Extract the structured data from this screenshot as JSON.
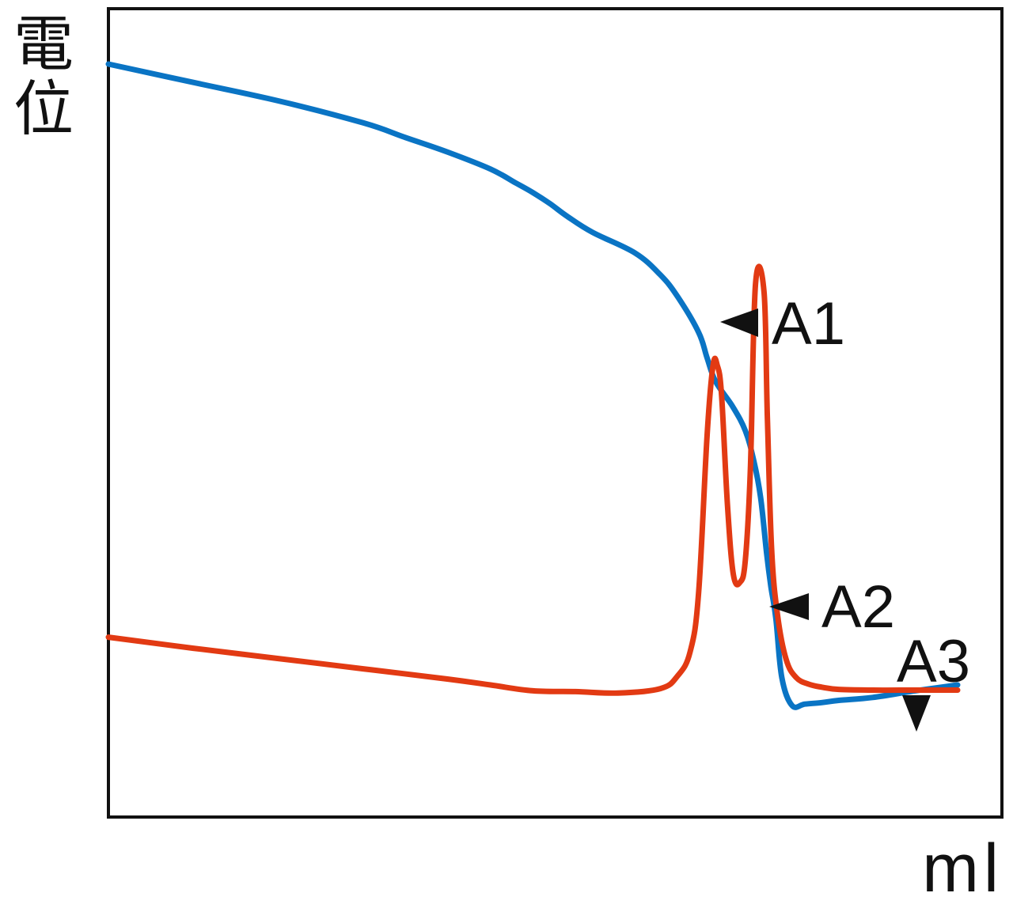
{
  "chart_data": {
    "type": "line",
    "ylabel": "電位",
    "xlabel": "ml",
    "xlim": [
      0,
      100
    ],
    "ylim": [
      0,
      100
    ],
    "grid": false,
    "ticks": false,
    "series": [
      {
        "color": "#0a74c4",
        "x": [
          0,
          10,
          20,
          30,
          35,
          40,
          45,
          48,
          50,
          52,
          54,
          57,
          62,
          65,
          67,
          69.5,
          70.5,
          71.5,
          73.5,
          75,
          76,
          76.8,
          77.5,
          78,
          78.6,
          79.3,
          80.5,
          82,
          84,
          86,
          90,
          95,
          100
        ],
        "y": [
          100,
          97.5,
          95,
          92,
          90,
          88,
          85.7,
          83.8,
          82.5,
          81,
          79.3,
          77.1,
          74.3,
          71.3,
          68.4,
          63.5,
          60,
          56.8,
          53.4,
          50.1,
          46,
          41,
          33.5,
          29,
          24.5,
          16.5,
          12.7,
          12.9,
          13.1,
          13.4,
          13.8,
          14.7,
          15.5
        ]
      },
      {
        "color": "#e23a13",
        "x": [
          0,
          10,
          20,
          30,
          40,
          45,
          50,
          55,
          60,
          65,
          67,
          68.5,
          69.5,
          70.5,
          71.2,
          71.7,
          72.2,
          72.9,
          73.6,
          74.4,
          75,
          75.6,
          76.2,
          77.2,
          77.6,
          78.1,
          78.8,
          79.8,
          81,
          82.5,
          84,
          86,
          90,
          95,
          100
        ],
        "y": [
          22,
          20.5,
          19.1,
          17.7,
          16.3,
          15.5,
          14.7,
          14.6,
          14.4,
          15,
          16.7,
          20,
          28,
          49.5,
          59,
          59,
          55,
          40,
          30.5,
          29.5,
          32.5,
          45,
          70,
          69,
          52,
          34,
          25,
          19,
          16.5,
          15.6,
          15.2,
          14.9,
          14.8,
          14.8,
          14.8
        ]
      }
    ],
    "annotations": [
      "A1",
      "A2",
      "A3"
    ]
  }
}
